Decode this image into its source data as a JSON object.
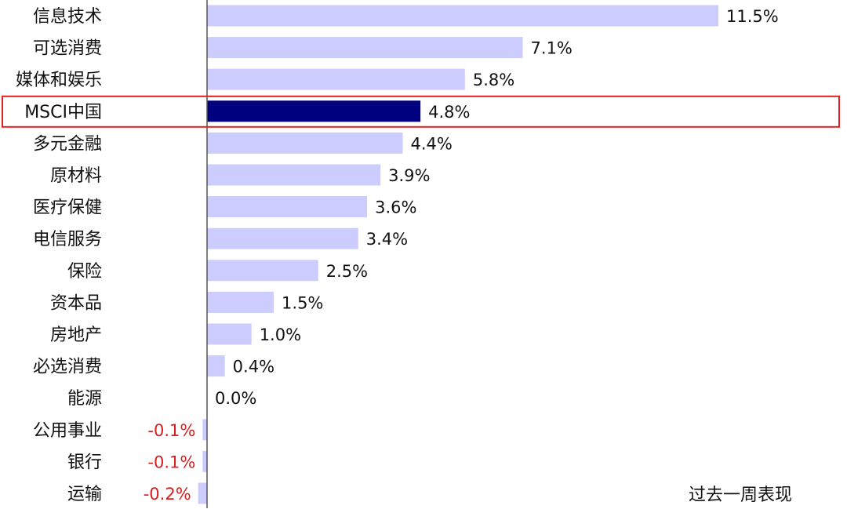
{
  "chart_data": {
    "type": "bar",
    "orientation": "horizontal",
    "categories": [
      "信息技术",
      "可选消费",
      "媒体和娱乐",
      "MSCI中国",
      "多元金融",
      "原材料",
      "医疗保健",
      "电信服务",
      "保险",
      "资本品",
      "房地产",
      "必选消费",
      "能源",
      "公用事业",
      "银行",
      "运输"
    ],
    "values": [
      11.5,
      7.1,
      5.8,
      4.8,
      4.4,
      3.9,
      3.6,
      3.4,
      2.5,
      1.5,
      1.0,
      0.4,
      0.0,
      -0.1,
      -0.1,
      -0.2
    ],
    "value_labels": [
      "11.5%",
      "7.1%",
      "5.8%",
      "4.8%",
      "4.4%",
      "3.9%",
      "3.6%",
      "3.4%",
      "2.5%",
      "1.5%",
      "1.0%",
      "0.4%",
      "0.0%",
      "-0.1%",
      "-0.1%",
      "-0.2%"
    ],
    "highlight_category": "MSCI中国",
    "caption": "过去一周表现",
    "xlim": [
      -0.2,
      11.5
    ],
    "grid": false,
    "colors": {
      "bar": "#ccccff",
      "highlight_bar": "#000080",
      "highlight_box": "#e02020",
      "negative_label": "#d81e1e",
      "axis": "#555555"
    }
  }
}
